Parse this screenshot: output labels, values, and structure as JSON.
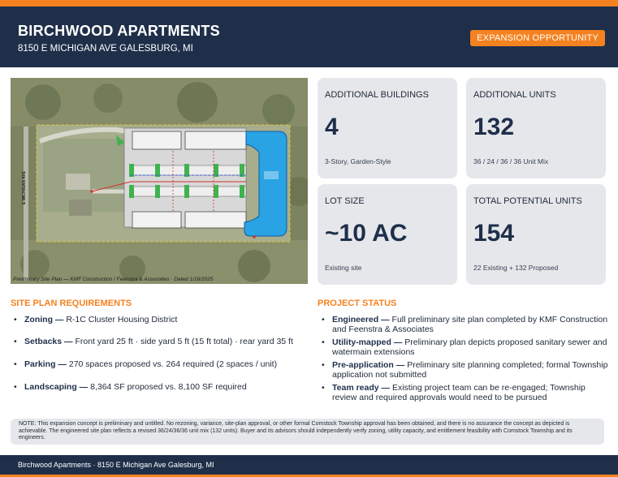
{
  "header": {
    "title": "BIRCHWOOD APARTMENTS",
    "subtitle": "8150 E MICHIGAN AVE GALESBURG, MI",
    "badge": "EXPANSION OPPORTUNITY"
  },
  "site_plan": {
    "street_label": "E MICHIGAN AVE",
    "caption": "Preliminary Site Plan — KMF Construction / Feenstra & Associates · Dated 1/16/2025"
  },
  "stats": [
    {
      "label": "ADDITIONAL BUILDINGS",
      "value": "4",
      "note": "3-Story, Garden-Style"
    },
    {
      "label": "ADDITIONAL UNITS",
      "value": "132",
      "note": "36 / 24 / 36 / 36 Unit Mix"
    },
    {
      "label": "LOT SIZE",
      "value": "~10 AC",
      "note": "Existing site"
    },
    {
      "label": "TOTAL POTENTIAL UNITS",
      "value": "154",
      "note": "22 Existing + 132 Proposed"
    }
  ],
  "requirements": {
    "title": "SITE PLAN REQUIREMENTS",
    "items": [
      {
        "key": "Zoning —",
        "text": "R-1C Cluster Housing District"
      },
      {
        "key": "Setbacks —",
        "text": "Front yard 25 ft · side yard 5 ft (15 ft total) · rear yard 35 ft"
      },
      {
        "key": "Parking —",
        "text": "270 spaces proposed vs. 264 required (2 spaces / unit)"
      },
      {
        "key": "Landscaping —",
        "text": "8,364 SF proposed vs. 8,100 SF required"
      }
    ]
  },
  "status": {
    "title": "PROJECT STATUS",
    "items": [
      {
        "key": "Engineered —",
        "text": "Full preliminary site plan completed by KMF Construction and Feenstra & Associates"
      },
      {
        "key": "Utility-mapped —",
        "text": "Preliminary plan depicts proposed sanitary sewer and watermain extensions"
      },
      {
        "key": "Pre-application —",
        "text": "Preliminary site planning completed; formal Township application not submitted"
      },
      {
        "key": "Team ready —",
        "text": "Existing project team can be re-engaged; Township review and required approvals would need to be pursued"
      }
    ]
  },
  "note": "NOTE: This expansion concept is preliminary and untitled. No rezoning, variance, site-plan approval, or other formal Comstock Township approval has been obtained, and there is no assurance the concept as depicted is achievable. The engineered site plan reflects a revised 36/24/36/36 unit mix (132 units). Buyer and its advisors should independently verify zoning, utility capacity, and entitlement feasibility with Comstock Township and its engineers.",
  "footer": "Birchwood Apartments · 8150 E Michigan Ave Galesburg, MI",
  "colors": {
    "navy": "#1f2f4a",
    "orange": "#f58220",
    "card": "#e5e7eb",
    "pond": "#29a3e3"
  }
}
